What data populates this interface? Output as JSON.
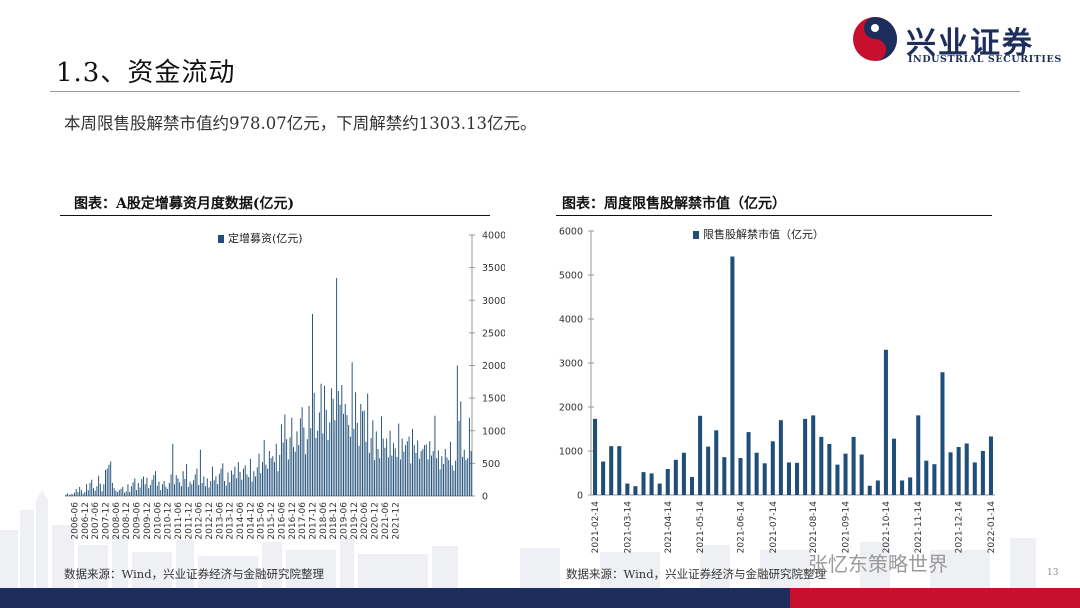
{
  "slide": {
    "title": "1.3、资金流动",
    "summary": "本周限售股解禁市值约978.07亿元，下周解禁约1303.13亿元。",
    "page_number": "13",
    "watermark": "张忆东策略世界"
  },
  "logo": {
    "cn": "兴业证券",
    "en": "INDUSTRIAL SECURITIES",
    "colors": {
      "red": "#c8102e",
      "navy": "#1d2e5c"
    }
  },
  "colors": {
    "bar": "#1f4e79",
    "navy": "#1d2e5c",
    "red": "#c8102e"
  },
  "chart_data": [
    {
      "type": "bar",
      "title": "图表：A股定增募资月度数据(亿元)",
      "source": "数据来源：Wind，兴业证券经济与金融研究院整理",
      "legend": "定增募资(亿元)",
      "y_axis_side": "right",
      "ylim": [
        0,
        4000
      ],
      "yticks": [
        "0",
        "500",
        "1000",
        "1500",
        "2000",
        "2500",
        "3000",
        "3500",
        "4000"
      ],
      "x_tick_labels": [
        "2006-06",
        "2006-12",
        "2007-06",
        "2007-12",
        "2008-06",
        "2008-12",
        "2009-06",
        "2009-12",
        "2010-06",
        "2010-12",
        "2011-06",
        "2011-12",
        "2012-06",
        "2012-12",
        "2013-06",
        "2013-12",
        "2014-06",
        "2014-12",
        "2015-06",
        "2015-12",
        "2016-06",
        "2016-12",
        "2017-06",
        "2017-12",
        "2018-06",
        "2018-12",
        "2019-06",
        "2019-12",
        "2020-06",
        "2020-12",
        "2021-06",
        "2021-12"
      ],
      "start_month": "2006-01",
      "values": [
        20,
        40,
        15,
        30,
        25,
        50,
        110,
        60,
        140,
        90,
        35,
        60,
        180,
        90,
        200,
        250,
        120,
        80,
        150,
        310,
        190,
        70,
        180,
        400,
        420,
        480,
        530,
        200,
        120,
        80,
        60,
        90,
        110,
        140,
        50,
        70,
        180,
        60,
        150,
        210,
        270,
        90,
        200,
        130,
        260,
        300,
        180,
        280,
        120,
        170,
        250,
        320,
        380,
        160,
        220,
        90,
        180,
        230,
        140,
        110,
        200,
        330,
        800,
        180,
        320,
        270,
        210,
        150,
        380,
        260,
        490,
        140,
        220,
        180,
        240,
        330,
        420,
        170,
        710,
        200,
        300,
        150,
        270,
        130,
        230,
        450,
        240,
        300,
        180,
        340,
        420,
        500,
        230,
        160,
        360,
        210,
        390,
        330,
        450,
        270,
        520,
        370,
        250,
        420,
        470,
        330,
        290,
        570,
        220,
        380,
        300,
        440,
        650,
        350,
        520,
        860,
        480,
        420,
        690,
        580,
        610,
        520,
        800,
        380,
        630,
        1100,
        820,
        1250,
        870,
        560,
        900,
        1200,
        750,
        680,
        990,
        780,
        1190,
        1360,
        1050,
        640,
        870,
        1380,
        1040,
        2790,
        1580,
        890,
        1000,
        1280,
        1720,
        960,
        1690,
        1320,
        860,
        1130,
        1650,
        1490,
        1160,
        3340,
        1610,
        1400,
        1700,
        1260,
        1410,
        1240,
        1090,
        910,
        2050,
        1030,
        1590,
        1120,
        770,
        1410,
        1300,
        1310,
        830,
        1570,
        660,
        890,
        1160,
        550,
        990,
        720,
        580,
        1220,
        880,
        740,
        880,
        590,
        1000,
        620,
        810,
        730,
        600,
        1110,
        560,
        880,
        680,
        780,
        840,
        910,
        500,
        1030,
        780,
        660,
        850,
        570,
        690,
        720,
        780,
        790,
        560,
        840,
        620,
        690,
        1230,
        580,
        700,
        410,
        610,
        490,
        720,
        590,
        550,
        830,
        470,
        390,
        540,
        2000,
        1150,
        1450,
        600,
        710,
        550,
        580,
        1200,
        690
      ],
      "bar_color": "#1f4e79"
    },
    {
      "type": "bar",
      "title": "图表：周度限售股解禁市值（亿元）",
      "source": "数据来源：Wind，兴业证券经济与金融研究院整理",
      "legend": "限售股解禁市值（亿元）",
      "y_axis_side": "left",
      "ylim": [
        0,
        6000
      ],
      "yticks": [
        "0",
        "1000",
        "2000",
        "3000",
        "4000",
        "5000",
        "6000"
      ],
      "x_tick_labels": [
        "2021-02-14",
        "2021-03-14",
        "2021-04-14",
        "2021-05-14",
        "2021-06-14",
        "2021-07-14",
        "2021-08-14",
        "2021-09-14",
        "2021-10-14",
        "2021-11-14",
        "2021-12-14",
        "2022-01-14"
      ],
      "values": [
        1730,
        760,
        1110,
        1110,
        260,
        200,
        520,
        490,
        260,
        590,
        800,
        960,
        410,
        1800,
        1100,
        1470,
        860,
        5420,
        840,
        1430,
        960,
        720,
        1220,
        1700,
        740,
        730,
        1730,
        1810,
        1320,
        1160,
        690,
        940,
        1320,
        920,
        210,
        330,
        3300,
        1280,
        330,
        400,
        1810,
        780,
        700,
        2790,
        970,
        1090,
        1170,
        740,
        1000,
        1330
      ],
      "bar_color": "#1f4e79"
    }
  ]
}
